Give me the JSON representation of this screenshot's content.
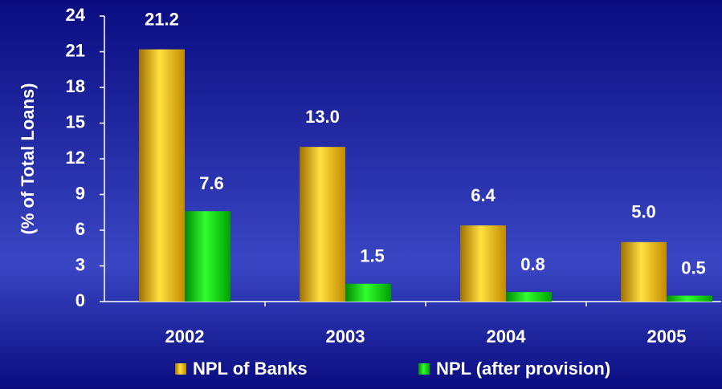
{
  "chart_data": {
    "type": "bar",
    "y_label": "(% of Total Loans)",
    "categories": [
      "2002",
      "2003",
      "2004",
      "2005"
    ],
    "series": [
      {
        "name": "NPL of Banks",
        "color": "#ffc800",
        "values": [
          21.2,
          13.0,
          6.4,
          5.0
        ],
        "value_labels": [
          "21.2",
          "13.0",
          "6.4",
          "5.0"
        ]
      },
      {
        "name": "NPL (after provision)",
        "color": "#00d000",
        "values": [
          7.6,
          1.5,
          0.8,
          0.5
        ],
        "value_labels": [
          "7.6",
          "1.5",
          "0.8",
          "0.5"
        ]
      }
    ],
    "ylim": [
      0,
      24
    ],
    "yticks": [
      0,
      3,
      6,
      9,
      12,
      15,
      18,
      21,
      24
    ]
  }
}
